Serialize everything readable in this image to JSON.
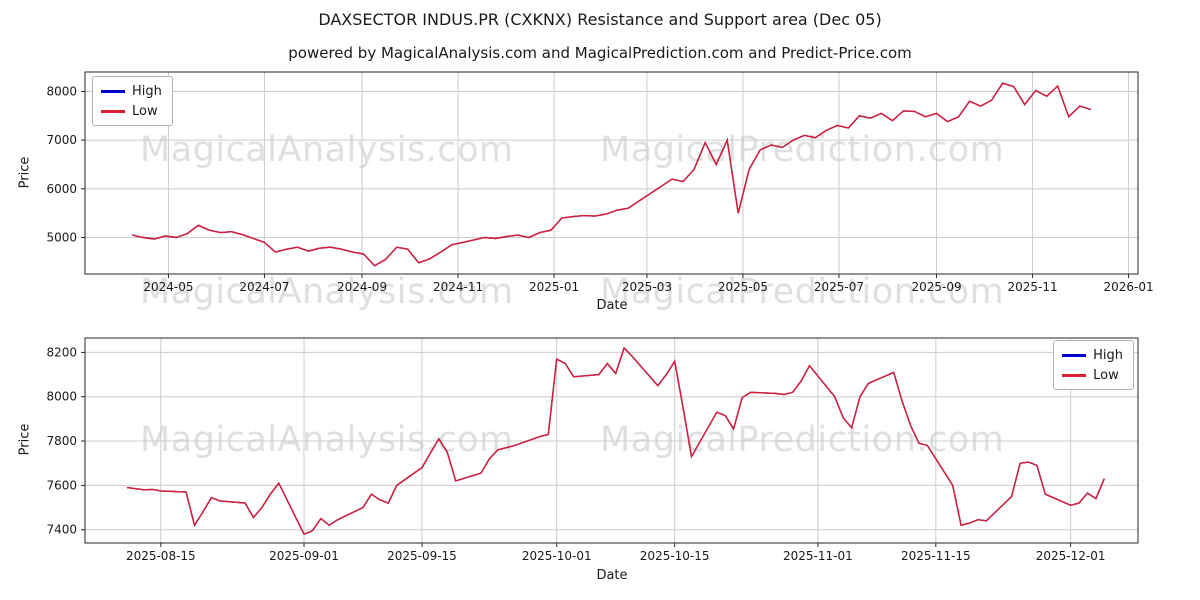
{
  "page": {
    "title": "DAXSECTOR INDUS.PR (CXKNX) Resistance and Support area (Dec 05)",
    "subtitle": "powered by MagicalAnalysis.com and MagicalPrediction.com and Predict-Price.com"
  },
  "watermarks": {
    "left": "MagicalAnalysis.com",
    "right": "MagicalPrediction.com"
  },
  "colors": {
    "high": "#0000cc",
    "low": "#dc1f2e",
    "grid": "#cccccc",
    "axis": "#262626",
    "text": "#1a1a1a"
  },
  "chart_data": [
    {
      "type": "line",
      "xlabel": "Date",
      "ylabel": "Price",
      "x_unit": "days since 2024-04-01",
      "xlim": [
        -23,
        646
      ],
      "ylim": [
        4250,
        8400
      ],
      "xticks": [
        {
          "v": 30,
          "label": "2024-05"
        },
        {
          "v": 91,
          "label": "2024-07"
        },
        {
          "v": 153,
          "label": "2024-09"
        },
        {
          "v": 214,
          "label": "2024-11"
        },
        {
          "v": 275,
          "label": "2025-01"
        },
        {
          "v": 334,
          "label": "2025-03"
        },
        {
          "v": 395,
          "label": "2025-05"
        },
        {
          "v": 456,
          "label": "2025-07"
        },
        {
          "v": 518,
          "label": "2025-09"
        },
        {
          "v": 579,
          "label": "2025-11"
        },
        {
          "v": 640,
          "label": "2026-01"
        }
      ],
      "yticks": [
        5000,
        6000,
        7000,
        8000
      ],
      "legend": {
        "entries": [
          "High",
          "Low"
        ],
        "position": "upper left"
      },
      "series": [
        {
          "name": "High",
          "color": "#0000cc",
          "note": "hidden beneath Low line (values overlap)"
        },
        {
          "name": "Low",
          "color": "#dc1f2e",
          "x_start": 7,
          "x_step": 7,
          "values": [
            5050,
            5000,
            4970,
            5030,
            5000,
            5080,
            5250,
            5150,
            5100,
            5120,
            5060,
            4980,
            4900,
            4700,
            4760,
            4800,
            4720,
            4780,
            4800,
            4760,
            4700,
            4660,
            4420,
            4550,
            4800,
            4760,
            4480,
            4560,
            4700,
            4850,
            4900,
            4950,
            5000,
            4980,
            5020,
            5050,
            5000,
            5100,
            5150,
            5400,
            5430,
            5450,
            5440,
            5480,
            5560,
            5600,
            5750,
            5900,
            6050,
            6200,
            6150,
            6400,
            6950,
            6500,
            7000,
            5500,
            6400,
            6800,
            6900,
            6850,
            7000,
            7100,
            7050,
            7200,
            7300,
            7250,
            7500,
            7450,
            7550,
            7400,
            7600,
            7590,
            7480,
            7550,
            7380,
            7480,
            7800,
            7700,
            7820,
            8170,
            8100,
            7730,
            8020,
            7900,
            8110,
            7480,
            7700,
            7630
          ]
        }
      ]
    },
    {
      "type": "line",
      "xlabel": "Date",
      "ylabel": "Price",
      "x_unit": "days since 2025-08-11",
      "xlim": [
        -5,
        120
      ],
      "ylim": [
        7340,
        8265
      ],
      "xticks": [
        {
          "v": 4,
          "label": "2025-08-15"
        },
        {
          "v": 21,
          "label": "2025-09-01"
        },
        {
          "v": 35,
          "label": "2025-09-15"
        },
        {
          "v": 51,
          "label": "2025-10-01"
        },
        {
          "v": 65,
          "label": "2025-10-15"
        },
        {
          "v": 82,
          "label": "2025-11-01"
        },
        {
          "v": 96,
          "label": "2025-11-15"
        },
        {
          "v": 112,
          "label": "2025-12-01"
        }
      ],
      "yticks": [
        7400,
        7600,
        7800,
        8000,
        8200
      ],
      "legend": {
        "entries": [
          "High",
          "Low"
        ],
        "position": "upper right"
      },
      "series": [
        {
          "name": "High",
          "color": "#0000cc",
          "note": "hidden beneath Low line (values overlap)"
        },
        {
          "name": "Low",
          "color": "#dc1f2e",
          "x": [
            0,
            1,
            2,
            3,
            4,
            7,
            8,
            9,
            10,
            11,
            14,
            15,
            16,
            17,
            18,
            21,
            22,
            23,
            24,
            25,
            28,
            29,
            30,
            31,
            32,
            35,
            36,
            37,
            38,
            39,
            42,
            43,
            44,
            45,
            46,
            49,
            50,
            51,
            52,
            53,
            56,
            57,
            58,
            59,
            60,
            63,
            64,
            65,
            66,
            67,
            70,
            71,
            72,
            73,
            74,
            77,
            78,
            79,
            80,
            81,
            84,
            85,
            86,
            87,
            88,
            91,
            92,
            93,
            94,
            95,
            98,
            99,
            100,
            101,
            102,
            105,
            106,
            107,
            108,
            109,
            112,
            113,
            114,
            115,
            116
          ],
          "values": [
            7590,
            7585,
            7580,
            7582,
            7575,
            7570,
            7420,
            7480,
            7545,
            7530,
            7520,
            7455,
            7500,
            7560,
            7610,
            7380,
            7395,
            7450,
            7420,
            7445,
            7500,
            7560,
            7535,
            7520,
            7600,
            7680,
            7745,
            7810,
            7750,
            7620,
            7655,
            7720,
            7760,
            7770,
            7780,
            7820,
            7830,
            8170,
            8150,
            8090,
            8100,
            8150,
            8105,
            8220,
            8180,
            8050,
            8100,
            8160,
            7950,
            7730,
            7930,
            7915,
            7855,
            7995,
            8020,
            8015,
            8010,
            8020,
            8070,
            8140,
            8000,
            7905,
            7860,
            8000,
            8060,
            8110,
            7980,
            7870,
            7790,
            7780,
            7600,
            7420,
            7430,
            7445,
            7440,
            7550,
            7700,
            7705,
            7690,
            7560,
            7510,
            7520,
            7565,
            7540,
            7630
          ]
        }
      ]
    }
  ]
}
